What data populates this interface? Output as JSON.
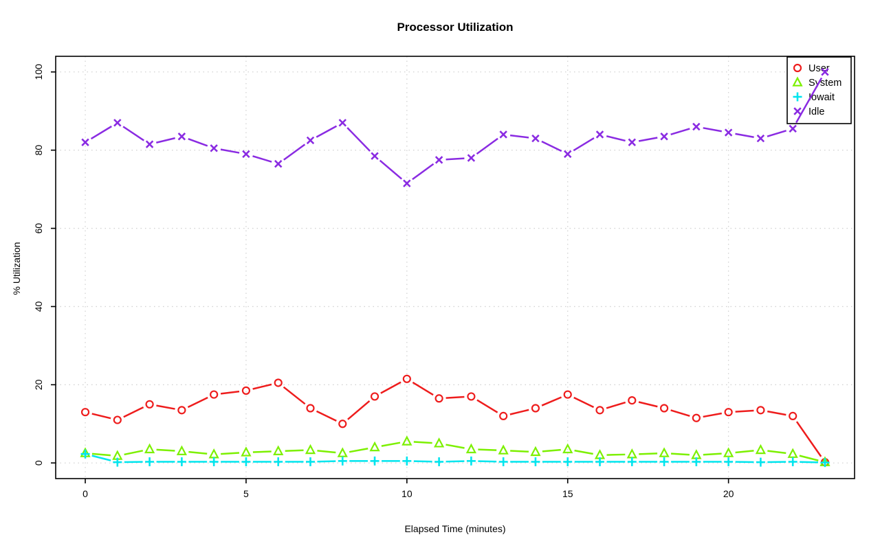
{
  "title": "Processor Utilization",
  "xlabel": "Elapsed Time (minutes)",
  "ylabel": "% Utilization",
  "chart_data": {
    "type": "line",
    "title": "Processor Utilization",
    "xlabel": "Elapsed Time (minutes)",
    "ylabel": "% Utilization",
    "x": [
      0,
      1,
      2,
      3,
      4,
      5,
      6,
      7,
      8,
      9,
      10,
      11,
      12,
      13,
      14,
      15,
      16,
      17,
      18,
      19,
      20,
      21,
      22,
      23
    ],
    "series": [
      {
        "name": "User",
        "marker": "circle",
        "color": "#ee1c1c",
        "values": [
          13,
          11,
          15,
          13.5,
          17.5,
          18.5,
          20.5,
          14,
          10,
          17,
          21.5,
          16.5,
          17,
          12,
          14,
          17.5,
          13.5,
          16,
          14,
          11.5,
          13,
          13.5,
          12,
          0.2
        ]
      },
      {
        "name": "System",
        "marker": "triangle",
        "color": "#7cf000",
        "values": [
          2.5,
          1.8,
          3.5,
          3,
          2.2,
          2.7,
          3,
          3.3,
          2.5,
          4,
          5.5,
          5,
          3.5,
          3.2,
          2.8,
          3.5,
          2,
          2.2,
          2.5,
          2,
          2.5,
          3.3,
          2.3,
          0.2
        ]
      },
      {
        "name": "Iowait",
        "marker": "plus",
        "color": "#00e5ee",
        "values": [
          2.3,
          0.2,
          0.3,
          0.3,
          0.3,
          0.3,
          0.3,
          0.3,
          0.5,
          0.5,
          0.5,
          0.3,
          0.5,
          0.3,
          0.3,
          0.3,
          0.3,
          0.3,
          0.3,
          0.3,
          0.3,
          0.2,
          0.3,
          0.1
        ]
      },
      {
        "name": "Idle",
        "marker": "x",
        "color": "#8a2be2",
        "values": [
          82,
          87,
          81.5,
          83.5,
          80.5,
          79,
          76.5,
          82.5,
          87,
          78.5,
          71.5,
          77.5,
          78,
          84,
          83,
          79,
          84,
          82,
          83.5,
          86,
          84.5,
          83,
          85.5,
          100
        ]
      }
    ],
    "xticks": [
      0,
      5,
      10,
      15,
      20
    ],
    "yticks": [
      0,
      20,
      40,
      60,
      80,
      100
    ],
    "xlim": [
      -0.92,
      23.92
    ],
    "ylim": [
      -4,
      104
    ],
    "grid": true,
    "grid_color": "#d2d2d2",
    "axis_color": "#000000",
    "legend_position": "top-right",
    "legend_labels": [
      "User",
      "System",
      "Iowait",
      "Idle"
    ]
  }
}
